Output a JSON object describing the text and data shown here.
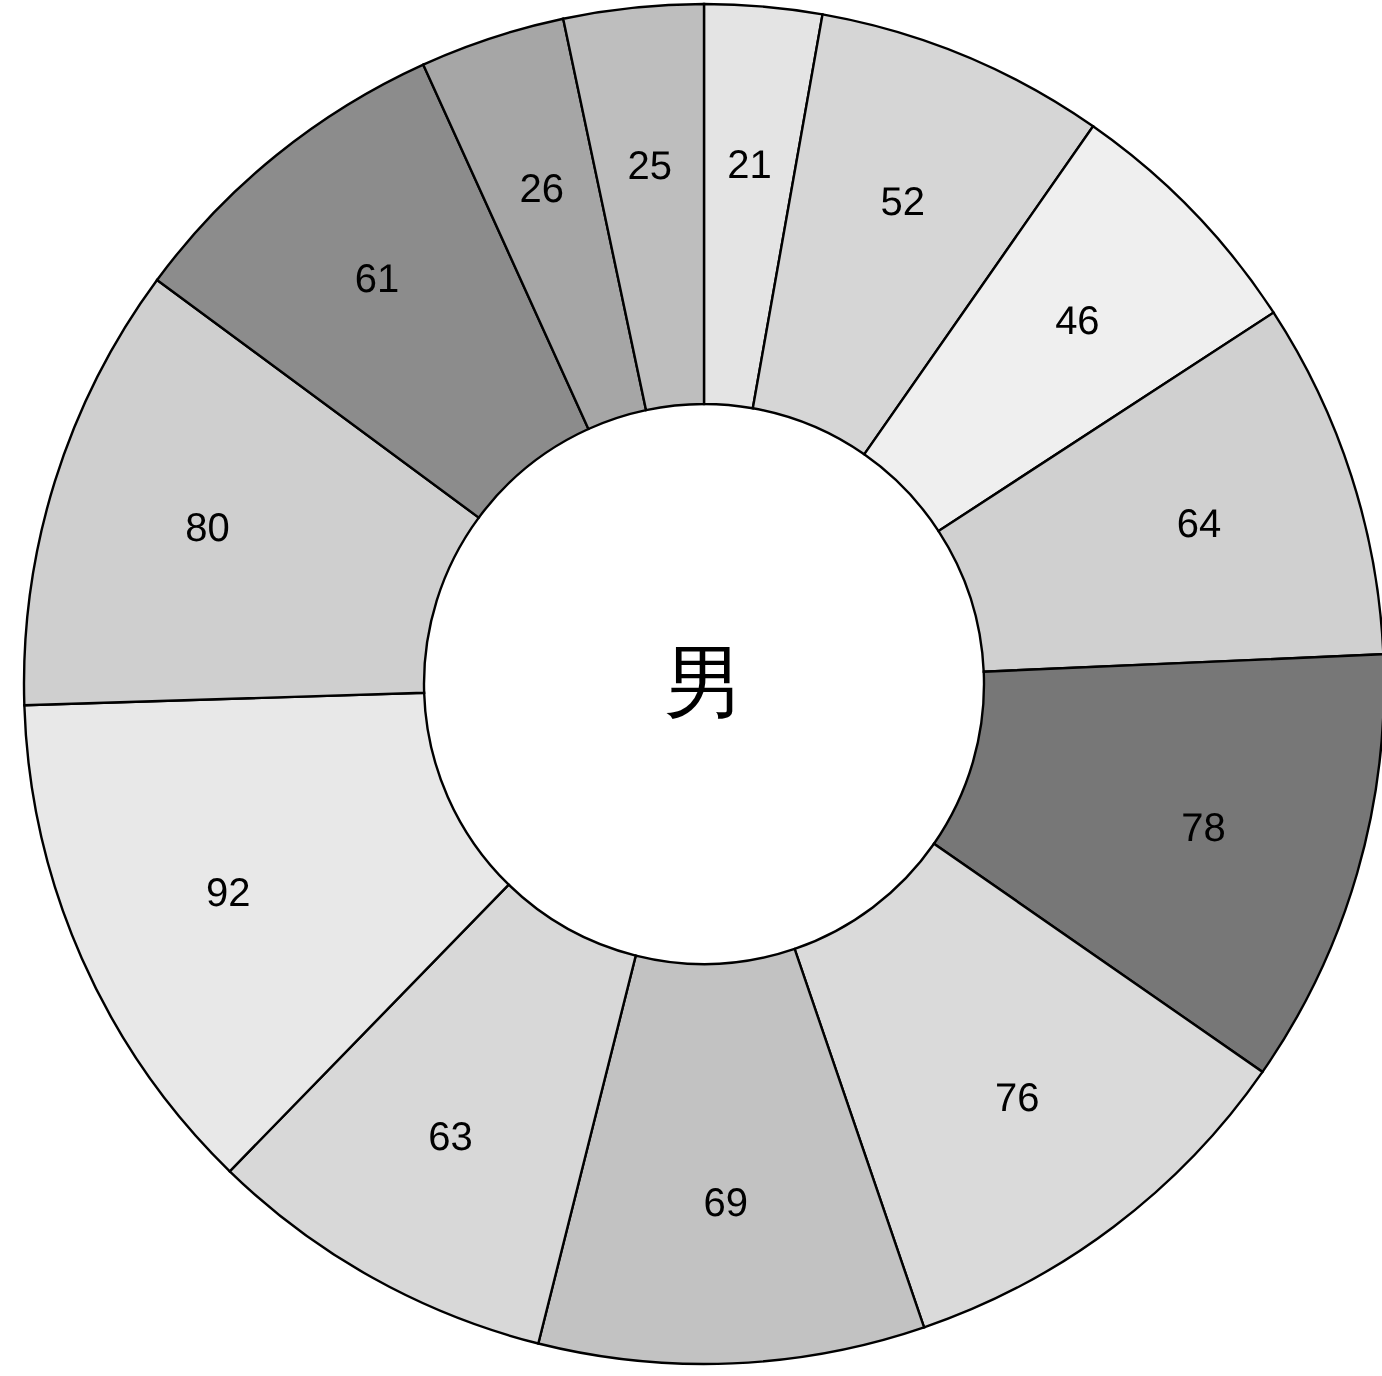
{
  "chart_data": {
    "type": "donut",
    "title": "男",
    "categories": [
      null,
      null,
      null,
      null,
      null,
      null,
      null,
      null,
      null,
      null,
      null,
      null,
      null
    ],
    "values": [
      21,
      52,
      46,
      64,
      78,
      76,
      69,
      63,
      92,
      80,
      61,
      26,
      25
    ],
    "colors": [
      "#e4e4e4",
      "#d6d6d6",
      "#efefef",
      "#d0d0d0",
      "#777777",
      "#dadada",
      "#c2c2c2",
      "#d8d8d8",
      "#e8e8e8",
      "#cfcfcf",
      "#8c8c8c",
      "#a6a6a6",
      "#bebebe"
    ],
    "data_labels": true
  }
}
